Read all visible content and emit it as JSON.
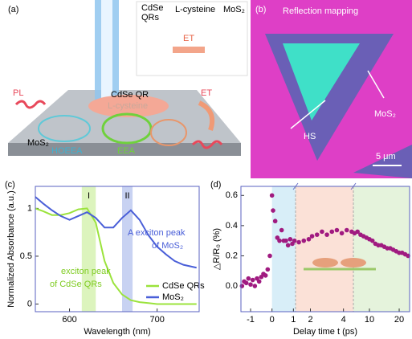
{
  "panel_a": {
    "label": "(a)",
    "inset_cdse": [
      "CdSe",
      "QRs"
    ],
    "inset_cys": "L-cysteine",
    "inset_mos2": "MoS₂",
    "inset_et": "ET",
    "pl": "PL",
    "qr": "CdSe QR",
    "cys": "L-cysteine",
    "et": "ET",
    "mos2": "MoS₂",
    "hoeea": "HOEEA",
    "eea": "EEA"
  },
  "panel_b": {
    "label": "(b)",
    "title": "Reflection mapping",
    "hs": "HS",
    "mos2": "MoS₂",
    "scale": "5 μm"
  },
  "chart_data": [
    {
      "type": "line",
      "panel": "(c)",
      "xlabel": "Wavelength (nm)",
      "ylabel": "Normalized Absorbance (a.u.)",
      "x": [
        561,
        570,
        580,
        590,
        600,
        610,
        620,
        630,
        640,
        650,
        660,
        670,
        680,
        690,
        700,
        710,
        720,
        730,
        745
      ],
      "series": [
        {
          "name": "CdSe QRs",
          "color": "#9be33c",
          "values": [
            1.0,
            0.97,
            0.93,
            0.93,
            0.95,
            0.99,
            1.0,
            0.85,
            0.45,
            0.22,
            0.1,
            0.04,
            0.02,
            0.01,
            0.0,
            0.0,
            0.0,
            0.0,
            0.0
          ]
        },
        {
          "name": "MoS₂",
          "color": "#4a5fd8",
          "values": [
            1.12,
            1.05,
            0.98,
            0.92,
            0.88,
            0.92,
            0.96,
            0.9,
            0.8,
            0.8,
            0.9,
            0.98,
            0.88,
            0.72,
            0.6,
            0.52,
            0.45,
            0.41,
            0.38
          ]
        }
      ],
      "xlim": [
        561,
        748
      ],
      "ylim": [
        -0.08,
        1.23
      ],
      "xticks": [
        600,
        700
      ],
      "yticks": [
        0,
        0.5,
        1
      ],
      "bands": [
        {
          "label": "I",
          "x": [
            614,
            630
          ],
          "color": "#dcf4bd"
        },
        {
          "label": "II",
          "x": [
            660,
            672
          ],
          "color": "#c8d2f2"
        }
      ],
      "annotations": [
        {
          "lines": [
            "A exciton peak",
            "of MoS₂"
          ],
          "color": "#4a5fd8"
        },
        {
          "lines": [
            "exciton peak",
            "of CdSe QRs"
          ],
          "color": "#7fcc22"
        }
      ]
    },
    {
      "type": "scatter",
      "panel": "(d)",
      "xlabel": "Delay time t (ps)",
      "ylabel": "△R/R₀ (%)",
      "color": "#a01a80",
      "x": [
        -1.4,
        -1.3,
        -1.2,
        -1.1,
        -1.0,
        -0.9,
        -0.8,
        -0.7,
        -0.6,
        -0.5,
        -0.4,
        -0.3,
        -0.2,
        -0.1,
        0,
        0.05,
        0.15,
        0.25,
        0.35,
        0.45,
        0.55,
        0.65,
        0.75,
        0.85,
        0.95,
        1.05,
        1.3,
        1.6,
        1.9,
        2.1,
        2.4,
        2.7,
        3.0,
        3.3,
        3.6,
        3.9,
        4.2,
        4.5,
        5,
        6,
        7,
        8,
        9,
        10,
        11,
        12,
        13,
        14,
        15,
        16,
        17,
        18,
        19,
        20,
        21,
        22,
        23
      ],
      "values": [
        0.0,
        0.03,
        0.02,
        0.05,
        0.01,
        0.04,
        0.0,
        0.05,
        0.03,
        0.06,
        0.08,
        0.07,
        0.11,
        0.2,
        0.6,
        0.5,
        0.43,
        0.32,
        0.3,
        0.37,
        0.3,
        0.3,
        0.27,
        0.31,
        0.28,
        0.3,
        0.29,
        0.3,
        0.31,
        0.33,
        0.34,
        0.36,
        0.34,
        0.36,
        0.37,
        0.35,
        0.37,
        0.36,
        0.35,
        0.36,
        0.34,
        0.33,
        0.32,
        0.31,
        0.3,
        0.28,
        0.27,
        0.27,
        0.26,
        0.25,
        0.25,
        0.24,
        0.23,
        0.22,
        0.22,
        0.21,
        0.2
      ],
      "x_segments": [
        [
          -1.45,
          1.1
        ],
        [
          1.1,
          4.6
        ],
        [
          4.6,
          23.5
        ]
      ],
      "ylim": [
        -0.17,
        0.66
      ],
      "xticks": [
        -1,
        0,
        1,
        2,
        4,
        10,
        20
      ],
      "yticks": [
        {
          "value": 0,
          "label": "0.0"
        },
        0.2,
        0.4,
        0.6
      ],
      "regions": [
        {
          "x": [
            0,
            1.1
          ],
          "color": "#d8eef8"
        },
        {
          "x": [
            1.1,
            4.6
          ],
          "color": "#fbe1d7"
        },
        {
          "x": [
            4.6,
            23.5
          ],
          "color": "#e5f3dc"
        }
      ]
    }
  ]
}
